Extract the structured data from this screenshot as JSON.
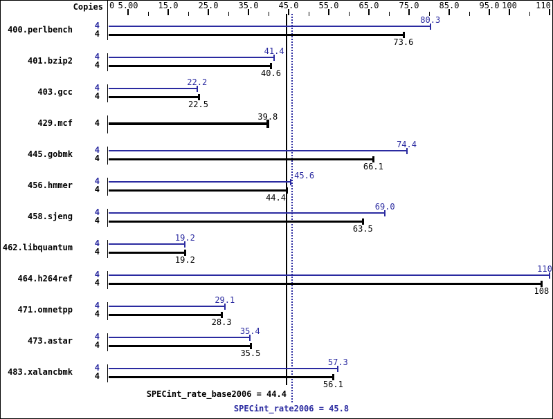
{
  "chart_data": {
    "type": "bar",
    "orientation": "horizontal",
    "copies_header": "Copies",
    "unit_axis": {
      "range": [
        0,
        112
      ],
      "grid": false,
      "labels": [
        {
          "value": 0,
          "text": "0"
        },
        {
          "value": 5,
          "text": "5.00"
        },
        {
          "value": 15,
          "text": "15.0"
        },
        {
          "value": 25,
          "text": "25.0"
        },
        {
          "value": 35,
          "text": "35.0"
        },
        {
          "value": 45,
          "text": "45.0"
        },
        {
          "value": 55,
          "text": "55.0"
        },
        {
          "value": 65,
          "text": "65.0"
        },
        {
          "value": 75,
          "text": "75.0"
        },
        {
          "value": 85,
          "text": "85.0"
        },
        {
          "value": 95,
          "text": "95.0"
        },
        {
          "value": 100,
          "text": "100"
        },
        {
          "value": 110,
          "text": "110"
        }
      ],
      "major_ticks": [
        5,
        15,
        25,
        35,
        45,
        55,
        65,
        75,
        85,
        95,
        100,
        110
      ],
      "minor_ticks": [
        10,
        20,
        30,
        40,
        50,
        60,
        70,
        80,
        90,
        105
      ]
    },
    "series": [
      {
        "id": "peak",
        "name": "SPECint_rate2006",
        "color": "#2a2aa0"
      },
      {
        "id": "base",
        "name": "SPECint_rate_base2006",
        "color": "#000000"
      }
    ],
    "benchmarks": [
      {
        "name": "400.perlbench",
        "bars": [
          {
            "series": "peak",
            "copies": "4",
            "value": 80.3,
            "label": "80.3"
          },
          {
            "series": "base",
            "copies": "4",
            "value": 73.6,
            "label": "73.6"
          }
        ]
      },
      {
        "name": "401.bzip2",
        "bars": [
          {
            "series": "peak",
            "copies": "4",
            "value": 41.4,
            "label": "41.4"
          },
          {
            "series": "base",
            "copies": "4",
            "value": 40.6,
            "label": "40.6"
          }
        ]
      },
      {
        "name": "403.gcc",
        "bars": [
          {
            "series": "peak",
            "copies": "4",
            "value": 22.2,
            "label": "22.2"
          },
          {
            "series": "base",
            "copies": "4",
            "value": 22.5,
            "label": "22.5"
          }
        ]
      },
      {
        "name": "429.mcf",
        "bars": [
          {
            "series": "base",
            "copies": "4",
            "value": 39.8,
            "label": "39.8",
            "single": true
          }
        ]
      },
      {
        "name": "445.gobmk",
        "bars": [
          {
            "series": "peak",
            "copies": "4",
            "value": 74.4,
            "label": "74.4"
          },
          {
            "series": "base",
            "copies": "4",
            "value": 66.1,
            "label": "66.1"
          }
        ]
      },
      {
        "name": "456.hmmer",
        "bars": [
          {
            "series": "peak",
            "copies": "4",
            "value": 45.6,
            "label": "45.6"
          },
          {
            "series": "base",
            "copies": "4",
            "value": 44.4,
            "label": "44.4"
          }
        ]
      },
      {
        "name": "458.sjeng",
        "bars": [
          {
            "series": "peak",
            "copies": "4",
            "value": 69.0,
            "label": "69.0"
          },
          {
            "series": "base",
            "copies": "4",
            "value": 63.5,
            "label": "63.5"
          }
        ]
      },
      {
        "name": "462.libquantum",
        "bars": [
          {
            "series": "peak",
            "copies": "4",
            "value": 19.2,
            "label": "19.2"
          },
          {
            "series": "base",
            "copies": "4",
            "value": 19.2,
            "label": "19.2"
          }
        ]
      },
      {
        "name": "464.h264ref",
        "bars": [
          {
            "series": "peak",
            "copies": "4",
            "value": 110,
            "label": "110"
          },
          {
            "series": "base",
            "copies": "4",
            "value": 108,
            "label": "108"
          }
        ]
      },
      {
        "name": "471.omnetpp",
        "bars": [
          {
            "series": "peak",
            "copies": "4",
            "value": 29.1,
            "label": "29.1"
          },
          {
            "series": "base",
            "copies": "4",
            "value": 28.3,
            "label": "28.3"
          }
        ]
      },
      {
        "name": "473.astar",
        "bars": [
          {
            "series": "peak",
            "copies": "4",
            "value": 35.4,
            "label": "35.4"
          },
          {
            "series": "base",
            "copies": "4",
            "value": 35.5,
            "label": "35.5"
          }
        ]
      },
      {
        "name": "483.xalancbmk",
        "bars": [
          {
            "series": "peak",
            "copies": "4",
            "value": 57.3,
            "label": "57.3"
          },
          {
            "series": "base",
            "copies": "4",
            "value": 56.1,
            "label": "56.1"
          }
        ]
      }
    ],
    "reference_lines": [
      {
        "series": "base",
        "style": "solid",
        "color": "#000000",
        "value": 44.4,
        "label": "SPECint_rate_base2006 = 44.4"
      },
      {
        "series": "peak",
        "style": "dotted",
        "color": "#2a2aa0",
        "value": 45.8,
        "label": "SPECint_rate2006 = 45.8"
      }
    ]
  }
}
